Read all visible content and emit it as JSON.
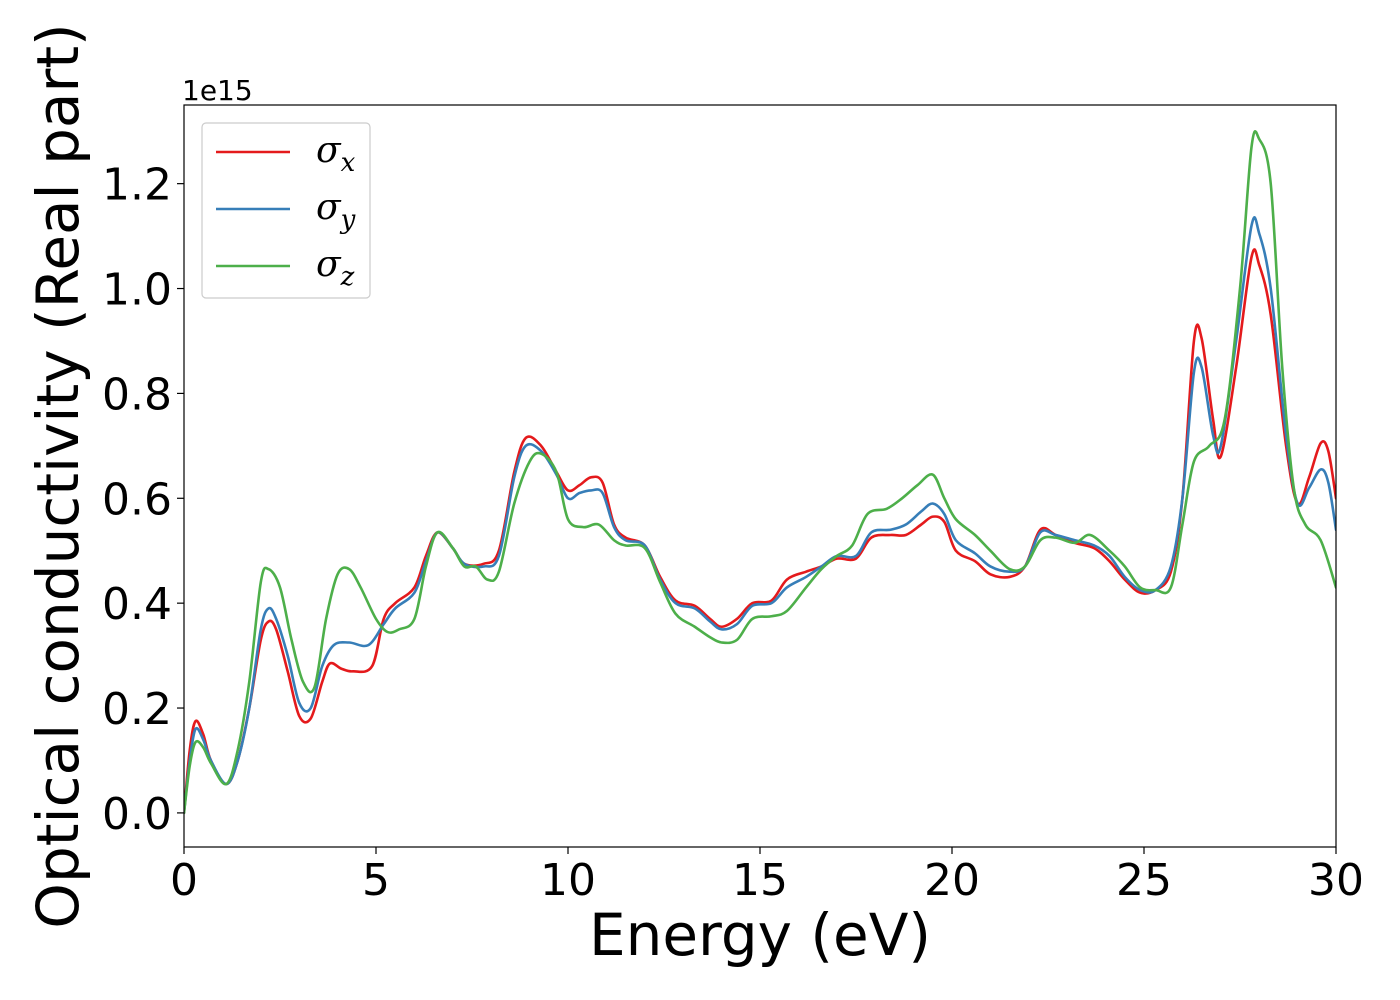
{
  "chart_data": {
    "type": "line",
    "xlabel": "Energy (eV)",
    "ylabel": "Optical conductivity (Real part)",
    "y_offset_label": "1e15",
    "xlim": [
      0,
      30
    ],
    "ylim": [
      -0.065,
      1.35
    ],
    "xticks": [
      0,
      5,
      10,
      15,
      20,
      25,
      30
    ],
    "xtick_labels": [
      "0",
      "5",
      "10",
      "15",
      "20",
      "25",
      "30"
    ],
    "yticks": [
      0.0,
      0.2,
      0.4,
      0.6,
      0.8,
      1.0,
      1.2
    ],
    "ytick_labels": [
      "0.0",
      "0.2",
      "0.4",
      "0.6",
      "0.8",
      "1.0",
      "1.2"
    ],
    "grid": false,
    "legend_position": "top-left",
    "series": [
      {
        "name": "σx",
        "sub": "x",
        "color": "#e41a1c",
        "points": [
          [
            0,
            0
          ],
          [
            0.15,
            0.12
          ],
          [
            0.3,
            0.175
          ],
          [
            0.5,
            0.15
          ],
          [
            0.7,
            0.1
          ],
          [
            1.1,
            0.055
          ],
          [
            1.4,
            0.1
          ],
          [
            1.7,
            0.2
          ],
          [
            2.0,
            0.33
          ],
          [
            2.2,
            0.365
          ],
          [
            2.4,
            0.35
          ],
          [
            2.7,
            0.27
          ],
          [
            3.0,
            0.185
          ],
          [
            3.3,
            0.18
          ],
          [
            3.6,
            0.25
          ],
          [
            3.8,
            0.285
          ],
          [
            4.1,
            0.275
          ],
          [
            4.4,
            0.27
          ],
          [
            4.9,
            0.28
          ],
          [
            5.2,
            0.37
          ],
          [
            5.5,
            0.4
          ],
          [
            6.0,
            0.43
          ],
          [
            6.3,
            0.49
          ],
          [
            6.6,
            0.535
          ],
          [
            7.0,
            0.505
          ],
          [
            7.3,
            0.475
          ],
          [
            7.8,
            0.475
          ],
          [
            8.2,
            0.5
          ],
          [
            8.6,
            0.65
          ],
          [
            8.9,
            0.715
          ],
          [
            9.3,
            0.7
          ],
          [
            9.7,
            0.65
          ],
          [
            10.0,
            0.615
          ],
          [
            10.3,
            0.625
          ],
          [
            10.6,
            0.64
          ],
          [
            10.9,
            0.63
          ],
          [
            11.2,
            0.55
          ],
          [
            11.5,
            0.525
          ],
          [
            12.0,
            0.51
          ],
          [
            12.4,
            0.45
          ],
          [
            12.8,
            0.405
          ],
          [
            13.3,
            0.395
          ],
          [
            13.7,
            0.37
          ],
          [
            14.0,
            0.355
          ],
          [
            14.4,
            0.37
          ],
          [
            14.8,
            0.4
          ],
          [
            15.3,
            0.405
          ],
          [
            15.7,
            0.445
          ],
          [
            16.2,
            0.46
          ],
          [
            16.6,
            0.47
          ],
          [
            17.0,
            0.485
          ],
          [
            17.5,
            0.485
          ],
          [
            17.9,
            0.525
          ],
          [
            18.4,
            0.53
          ],
          [
            18.8,
            0.53
          ],
          [
            19.2,
            0.55
          ],
          [
            19.5,
            0.565
          ],
          [
            19.8,
            0.555
          ],
          [
            20.1,
            0.5
          ],
          [
            20.6,
            0.48
          ],
          [
            21.0,
            0.455
          ],
          [
            21.5,
            0.45
          ],
          [
            21.9,
            0.47
          ],
          [
            22.3,
            0.54
          ],
          [
            22.7,
            0.53
          ],
          [
            23.2,
            0.515
          ],
          [
            23.7,
            0.505
          ],
          [
            24.1,
            0.48
          ],
          [
            24.5,
            0.445
          ],
          [
            24.9,
            0.42
          ],
          [
            25.3,
            0.425
          ],
          [
            25.7,
            0.46
          ],
          [
            26.0,
            0.6
          ],
          [
            26.3,
            0.9
          ],
          [
            26.5,
            0.905
          ],
          [
            26.8,
            0.75
          ],
          [
            27.0,
            0.68
          ],
          [
            27.4,
            0.85
          ],
          [
            27.8,
            1.06
          ],
          [
            28.0,
            1.045
          ],
          [
            28.3,
            0.95
          ],
          [
            28.7,
            0.7
          ],
          [
            29.0,
            0.59
          ],
          [
            29.3,
            0.64
          ],
          [
            29.6,
            0.705
          ],
          [
            29.8,
            0.69
          ],
          [
            30.0,
            0.6
          ]
        ]
      },
      {
        "name": "σy",
        "sub": "y",
        "color": "#377eb8",
        "points": [
          [
            0,
            0
          ],
          [
            0.15,
            0.1
          ],
          [
            0.3,
            0.16
          ],
          [
            0.5,
            0.14
          ],
          [
            0.7,
            0.1
          ],
          [
            1.1,
            0.055
          ],
          [
            1.4,
            0.1
          ],
          [
            1.7,
            0.2
          ],
          [
            2.0,
            0.35
          ],
          [
            2.2,
            0.39
          ],
          [
            2.4,
            0.37
          ],
          [
            2.7,
            0.3
          ],
          [
            3.0,
            0.21
          ],
          [
            3.3,
            0.2
          ],
          [
            3.6,
            0.28
          ],
          [
            3.9,
            0.32
          ],
          [
            4.3,
            0.325
          ],
          [
            4.8,
            0.32
          ],
          [
            5.2,
            0.36
          ],
          [
            5.5,
            0.39
          ],
          [
            6.0,
            0.42
          ],
          [
            6.3,
            0.48
          ],
          [
            6.6,
            0.535
          ],
          [
            7.0,
            0.505
          ],
          [
            7.3,
            0.475
          ],
          [
            7.8,
            0.47
          ],
          [
            8.2,
            0.49
          ],
          [
            8.6,
            0.64
          ],
          [
            8.9,
            0.7
          ],
          [
            9.3,
            0.69
          ],
          [
            9.7,
            0.645
          ],
          [
            10.0,
            0.6
          ],
          [
            10.3,
            0.61
          ],
          [
            10.6,
            0.615
          ],
          [
            10.9,
            0.61
          ],
          [
            11.2,
            0.545
          ],
          [
            11.5,
            0.52
          ],
          [
            12.0,
            0.51
          ],
          [
            12.4,
            0.445
          ],
          [
            12.8,
            0.4
          ],
          [
            13.3,
            0.39
          ],
          [
            13.7,
            0.365
          ],
          [
            14.0,
            0.35
          ],
          [
            14.4,
            0.36
          ],
          [
            14.8,
            0.395
          ],
          [
            15.3,
            0.4
          ],
          [
            15.7,
            0.43
          ],
          [
            16.2,
            0.45
          ],
          [
            16.6,
            0.47
          ],
          [
            17.0,
            0.49
          ],
          [
            17.5,
            0.49
          ],
          [
            17.9,
            0.535
          ],
          [
            18.4,
            0.54
          ],
          [
            18.8,
            0.55
          ],
          [
            19.2,
            0.575
          ],
          [
            19.5,
            0.59
          ],
          [
            19.8,
            0.57
          ],
          [
            20.1,
            0.52
          ],
          [
            20.6,
            0.495
          ],
          [
            21.0,
            0.47
          ],
          [
            21.5,
            0.46
          ],
          [
            21.9,
            0.47
          ],
          [
            22.3,
            0.535
          ],
          [
            22.7,
            0.53
          ],
          [
            23.2,
            0.52
          ],
          [
            23.7,
            0.51
          ],
          [
            24.1,
            0.49
          ],
          [
            24.5,
            0.45
          ],
          [
            24.9,
            0.425
          ],
          [
            25.3,
            0.425
          ],
          [
            25.7,
            0.47
          ],
          [
            26.0,
            0.6
          ],
          [
            26.3,
            0.84
          ],
          [
            26.5,
            0.85
          ],
          [
            26.8,
            0.72
          ],
          [
            27.0,
            0.7
          ],
          [
            27.4,
            0.9
          ],
          [
            27.8,
            1.12
          ],
          [
            28.0,
            1.105
          ],
          [
            28.3,
            1.0
          ],
          [
            28.7,
            0.72
          ],
          [
            29.0,
            0.59
          ],
          [
            29.3,
            0.62
          ],
          [
            29.6,
            0.655
          ],
          [
            29.8,
            0.63
          ],
          [
            30.0,
            0.54
          ]
        ]
      },
      {
        "name": "σz",
        "sub": "z",
        "color": "#4daf4a",
        "points": [
          [
            0,
            0
          ],
          [
            0.15,
            0.09
          ],
          [
            0.3,
            0.135
          ],
          [
            0.5,
            0.125
          ],
          [
            0.7,
            0.095
          ],
          [
            1.1,
            0.055
          ],
          [
            1.4,
            0.12
          ],
          [
            1.7,
            0.25
          ],
          [
            2.0,
            0.44
          ],
          [
            2.2,
            0.465
          ],
          [
            2.5,
            0.43
          ],
          [
            2.8,
            0.33
          ],
          [
            3.1,
            0.25
          ],
          [
            3.4,
            0.24
          ],
          [
            3.7,
            0.37
          ],
          [
            4.0,
            0.455
          ],
          [
            4.3,
            0.465
          ],
          [
            4.6,
            0.43
          ],
          [
            5.0,
            0.37
          ],
          [
            5.3,
            0.345
          ],
          [
            5.6,
            0.35
          ],
          [
            6.0,
            0.37
          ],
          [
            6.3,
            0.47
          ],
          [
            6.6,
            0.535
          ],
          [
            7.0,
            0.505
          ],
          [
            7.3,
            0.47
          ],
          [
            7.6,
            0.47
          ],
          [
            7.9,
            0.445
          ],
          [
            8.2,
            0.46
          ],
          [
            8.6,
            0.59
          ],
          [
            9.0,
            0.67
          ],
          [
            9.3,
            0.685
          ],
          [
            9.7,
            0.65
          ],
          [
            10.0,
            0.56
          ],
          [
            10.4,
            0.545
          ],
          [
            10.8,
            0.55
          ],
          [
            11.2,
            0.52
          ],
          [
            11.5,
            0.51
          ],
          [
            12.0,
            0.505
          ],
          [
            12.4,
            0.44
          ],
          [
            12.8,
            0.38
          ],
          [
            13.3,
            0.355
          ],
          [
            13.7,
            0.335
          ],
          [
            14.0,
            0.325
          ],
          [
            14.4,
            0.33
          ],
          [
            14.8,
            0.37
          ],
          [
            15.3,
            0.375
          ],
          [
            15.7,
            0.385
          ],
          [
            16.2,
            0.43
          ],
          [
            16.6,
            0.465
          ],
          [
            17.0,
            0.49
          ],
          [
            17.4,
            0.51
          ],
          [
            17.8,
            0.57
          ],
          [
            18.3,
            0.58
          ],
          [
            18.7,
            0.6
          ],
          [
            19.1,
            0.625
          ],
          [
            19.5,
            0.645
          ],
          [
            19.8,
            0.6
          ],
          [
            20.1,
            0.56
          ],
          [
            20.6,
            0.53
          ],
          [
            21.0,
            0.5
          ],
          [
            21.5,
            0.465
          ],
          [
            21.9,
            0.47
          ],
          [
            22.3,
            0.52
          ],
          [
            22.7,
            0.525
          ],
          [
            23.2,
            0.515
          ],
          [
            23.6,
            0.53
          ],
          [
            24.1,
            0.5
          ],
          [
            24.5,
            0.47
          ],
          [
            24.9,
            0.43
          ],
          [
            25.3,
            0.425
          ],
          [
            25.7,
            0.43
          ],
          [
            26.0,
            0.55
          ],
          [
            26.3,
            0.67
          ],
          [
            26.7,
            0.7
          ],
          [
            27.1,
            0.75
          ],
          [
            27.5,
            1.0
          ],
          [
            27.8,
            1.27
          ],
          [
            28.0,
            1.285
          ],
          [
            28.3,
            1.2
          ],
          [
            28.6,
            0.85
          ],
          [
            28.9,
            0.62
          ],
          [
            29.2,
            0.55
          ],
          [
            29.6,
            0.52
          ],
          [
            30.0,
            0.43
          ]
        ]
      }
    ]
  }
}
